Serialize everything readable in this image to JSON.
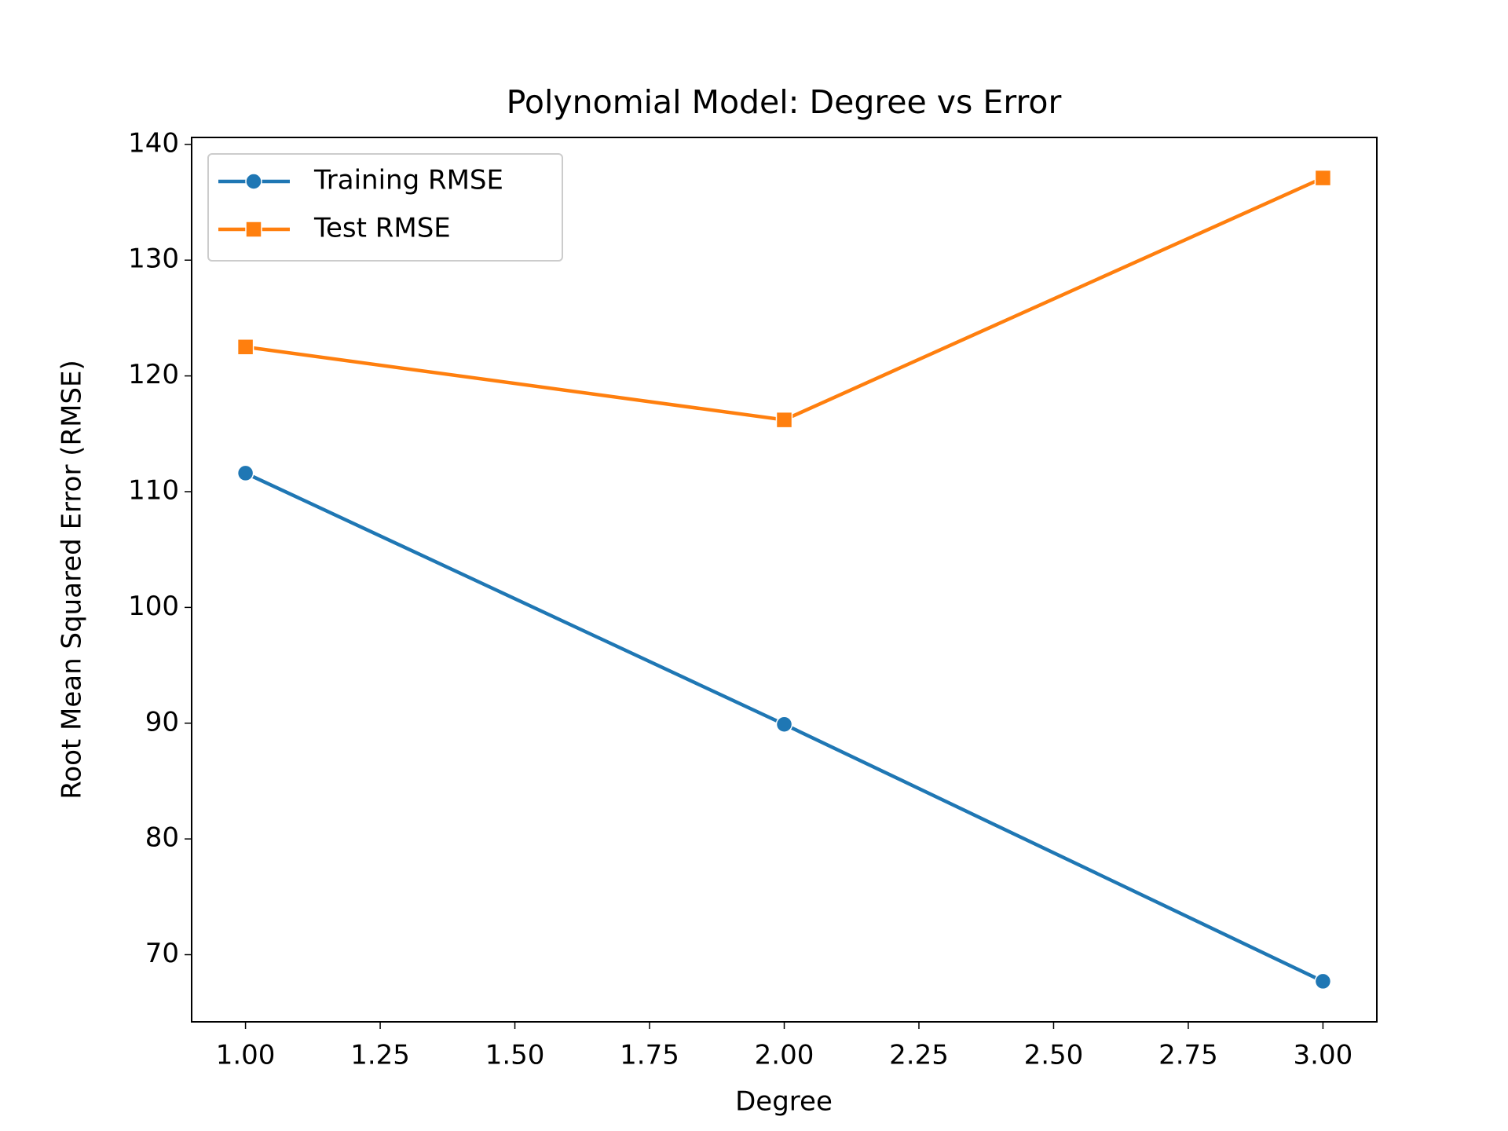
{
  "chart_data": {
    "type": "line",
    "title": "Polynomial Model: Degree vs Error",
    "x_label": "Degree",
    "y_label": "Root Mean Squared Error (RMSE)",
    "x": [
      1,
      2,
      3
    ],
    "series": [
      {
        "name": "Training RMSE",
        "color": "#1f77b4",
        "marker": "circle",
        "values": [
          111.6,
          89.9,
          67.7
        ]
      },
      {
        "name": "Test RMSE",
        "color": "#ff7f0e",
        "marker": "square",
        "values": [
          122.5,
          116.2,
          137.1
        ]
      }
    ],
    "xlim": [
      0.9,
      3.1
    ],
    "xticks": [
      {
        "value": 1,
        "label": "1.00"
      },
      {
        "value": 1.25,
        "label": "1.25"
      },
      {
        "value": 1.5,
        "label": "1.50"
      },
      {
        "value": 1.75,
        "label": "1.75"
      },
      {
        "value": 2,
        "label": "2.00"
      },
      {
        "value": 2.25,
        "label": "2.25"
      },
      {
        "value": 2.5,
        "label": "2.50"
      },
      {
        "value": 2.75,
        "label": "2.75"
      },
      {
        "value": 3,
        "label": "3.00"
      }
    ],
    "ylim": [
      64.2,
      140.6
    ],
    "yticks": [
      70,
      80,
      90,
      100,
      110,
      120,
      130,
      140
    ],
    "grid": false,
    "legend": "upper left"
  }
}
